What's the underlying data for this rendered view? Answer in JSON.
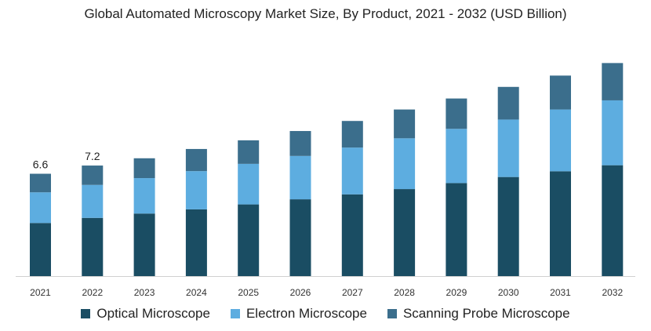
{
  "chart_data": {
    "type": "bar",
    "stacked": true,
    "title": "Global Automated Microscopy Market Size, By Product, 2021 - 2032 (USD Billion)",
    "xlabel": "",
    "ylabel": "",
    "categories": [
      "2021",
      "2022",
      "2023",
      "2024",
      "2025",
      "2026",
      "2027",
      "2028",
      "2029",
      "2030",
      "2031",
      "2032"
    ],
    "series": [
      {
        "name": "Optical Microscope",
        "color": "#1a4d63",
        "values": [
          3.43,
          3.76,
          4.04,
          4.31,
          4.63,
          4.96,
          5.28,
          5.62,
          6.01,
          6.4,
          6.77,
          7.16
        ]
      },
      {
        "name": "Electron Microscope",
        "color": "#5dade0",
        "values": [
          1.98,
          2.13,
          2.29,
          2.47,
          2.62,
          2.8,
          3.02,
          3.28,
          3.5,
          3.71,
          3.99,
          4.19
        ]
      },
      {
        "name": "Scanning Probe Microscope",
        "color": "#3b6e8c",
        "values": [
          1.2,
          1.25,
          1.28,
          1.43,
          1.52,
          1.61,
          1.72,
          1.86,
          1.96,
          2.11,
          2.19,
          2.41
        ]
      }
    ],
    "data_labels": [
      {
        "category": "2021",
        "text": "6.6"
      },
      {
        "category": "2022",
        "text": "7.2"
      }
    ],
    "ylim": [
      0,
      14
    ],
    "grid": false,
    "legend": "bottom"
  }
}
